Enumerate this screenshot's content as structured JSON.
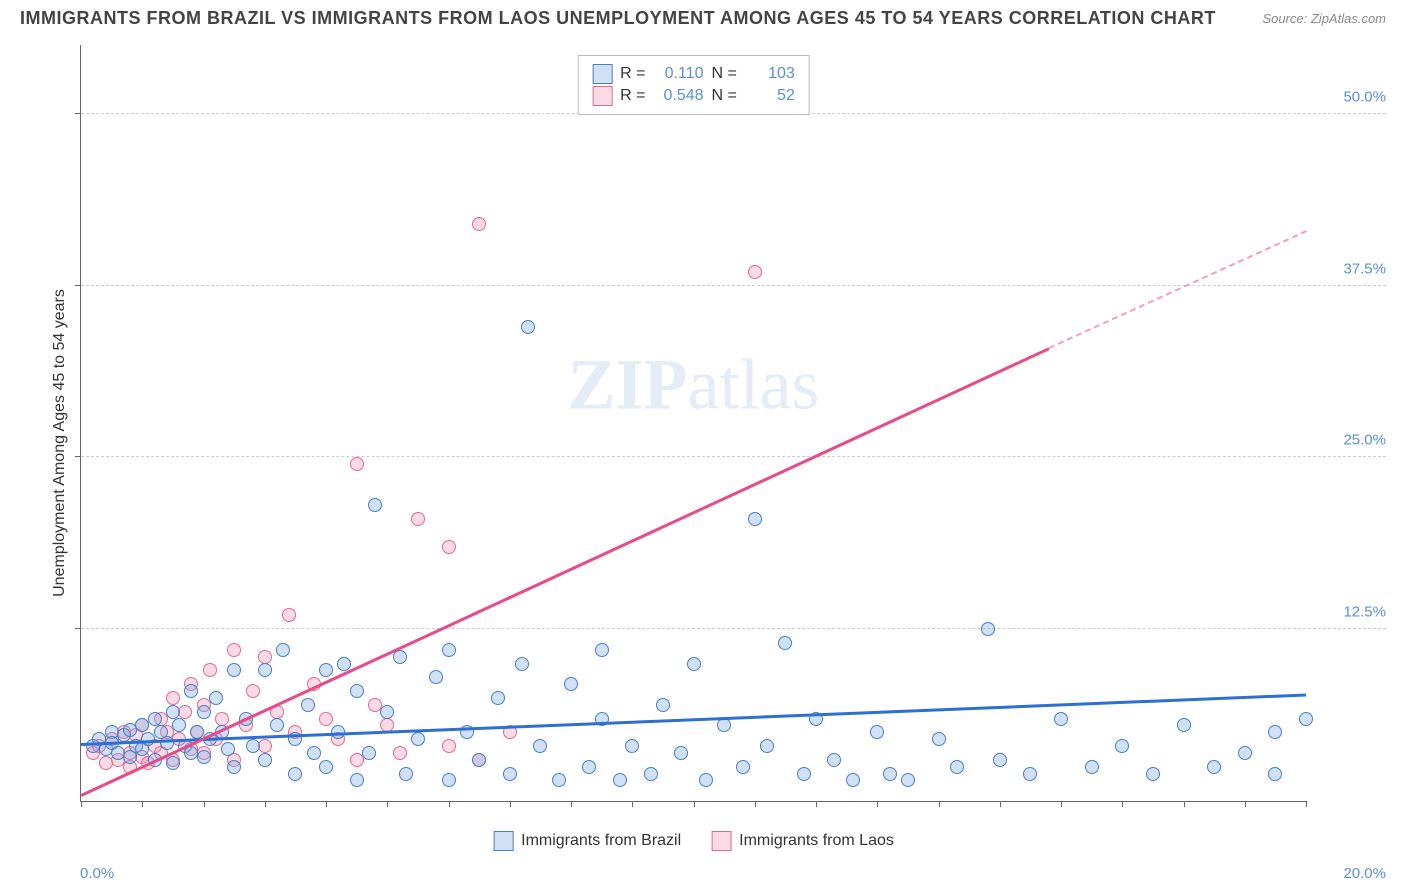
{
  "header": {
    "title": "IMMIGRANTS FROM BRAZIL VS IMMIGRANTS FROM LAOS UNEMPLOYMENT AMONG AGES 45 TO 54 YEARS CORRELATION CHART",
    "source": "Source: ZipAtlas.com"
  },
  "watermark": {
    "zip": "ZIP",
    "atlas": "atlas"
  },
  "chart": {
    "type": "scatter",
    "y_axis_label": "Unemployment Among Ages 45 to 54 years",
    "xlim": [
      0,
      20
    ],
    "ylim": [
      0,
      55
    ],
    "x_tick_step": 1,
    "y_ticks": [
      12.5,
      25.0,
      37.5,
      50.0
    ],
    "y_tick_labels": [
      "12.5%",
      "25.0%",
      "37.5%",
      "50.0%"
    ],
    "x_origin_label": "0.0%",
    "x_max_label": "20.0%",
    "background_color": "#ffffff",
    "grid_color": "#cccccc",
    "axis_color": "#666666",
    "tick_label_color": "#5b8fd9",
    "series": {
      "brazil": {
        "label": "Immigrants from Brazil",
        "fill_color": "rgba(120,170,230,0.35)",
        "stroke_color": "#4a7fc4",
        "trend_color": "#2d6fd4",
        "marker_size": 14,
        "R": "0.110",
        "N": "103",
        "trend": {
          "x1": 0,
          "y1": 4.2,
          "x2": 20,
          "y2": 7.8
        },
        "points": [
          [
            0.2,
            4.0
          ],
          [
            0.3,
            4.5
          ],
          [
            0.4,
            3.8
          ],
          [
            0.5,
            5.0
          ],
          [
            0.5,
            4.2
          ],
          [
            0.6,
            3.5
          ],
          [
            0.7,
            4.8
          ],
          [
            0.8,
            5.2
          ],
          [
            0.8,
            3.2
          ],
          [
            0.9,
            4.0
          ],
          [
            1.0,
            5.5
          ],
          [
            1.0,
            3.8
          ],
          [
            1.1,
            4.5
          ],
          [
            1.2,
            6.0
          ],
          [
            1.2,
            3.0
          ],
          [
            1.3,
            5.0
          ],
          [
            1.4,
            4.2
          ],
          [
            1.5,
            6.5
          ],
          [
            1.5,
            2.8
          ],
          [
            1.6,
            5.5
          ],
          [
            1.7,
            4.0
          ],
          [
            1.8,
            3.5
          ],
          [
            1.8,
            8.0
          ],
          [
            1.9,
            5.0
          ],
          [
            2.0,
            6.5
          ],
          [
            2.0,
            3.2
          ],
          [
            2.1,
            4.5
          ],
          [
            2.2,
            7.5
          ],
          [
            2.3,
            5.0
          ],
          [
            2.4,
            3.8
          ],
          [
            2.5,
            9.5
          ],
          [
            2.5,
            2.5
          ],
          [
            2.7,
            6.0
          ],
          [
            2.8,
            4.0
          ],
          [
            3.0,
            9.5
          ],
          [
            3.0,
            3.0
          ],
          [
            3.2,
            5.5
          ],
          [
            3.3,
            11.0
          ],
          [
            3.5,
            4.5
          ],
          [
            3.5,
            2.0
          ],
          [
            3.7,
            7.0
          ],
          [
            3.8,
            3.5
          ],
          [
            4.0,
            9.5
          ],
          [
            4.0,
            2.5
          ],
          [
            4.2,
            5.0
          ],
          [
            4.3,
            10.0
          ],
          [
            4.5,
            1.5
          ],
          [
            4.5,
            8.0
          ],
          [
            4.7,
            3.5
          ],
          [
            4.8,
            21.5
          ],
          [
            5.0,
            6.5
          ],
          [
            5.2,
            10.5
          ],
          [
            5.3,
            2.0
          ],
          [
            5.5,
            4.5
          ],
          [
            5.8,
            9.0
          ],
          [
            6.0,
            1.5
          ],
          [
            6.0,
            11.0
          ],
          [
            6.3,
            5.0
          ],
          [
            6.5,
            3.0
          ],
          [
            6.8,
            7.5
          ],
          [
            7.0,
            2.0
          ],
          [
            7.2,
            10.0
          ],
          [
            7.3,
            34.5
          ],
          [
            7.5,
            4.0
          ],
          [
            7.8,
            1.5
          ],
          [
            8.0,
            8.5
          ],
          [
            8.3,
            2.5
          ],
          [
            8.5,
            6.0
          ],
          [
            8.5,
            11.0
          ],
          [
            8.8,
            1.5
          ],
          [
            9.0,
            4.0
          ],
          [
            9.3,
            2.0
          ],
          [
            9.5,
            7.0
          ],
          [
            9.8,
            3.5
          ],
          [
            10.0,
            10.0
          ],
          [
            10.2,
            1.5
          ],
          [
            10.5,
            5.5
          ],
          [
            10.8,
            2.5
          ],
          [
            11.0,
            20.5
          ],
          [
            11.2,
            4.0
          ],
          [
            11.5,
            11.5
          ],
          [
            11.8,
            2.0
          ],
          [
            12.0,
            6.0
          ],
          [
            12.3,
            3.0
          ],
          [
            12.6,
            1.5
          ],
          [
            13.0,
            5.0
          ],
          [
            13.2,
            2.0
          ],
          [
            13.5,
            1.5
          ],
          [
            14.0,
            4.5
          ],
          [
            14.3,
            2.5
          ],
          [
            14.8,
            12.5
          ],
          [
            15.0,
            3.0
          ],
          [
            15.5,
            2.0
          ],
          [
            16.0,
            6.0
          ],
          [
            16.5,
            2.5
          ],
          [
            17.0,
            4.0
          ],
          [
            17.5,
            2.0
          ],
          [
            18.0,
            5.5
          ],
          [
            18.5,
            2.5
          ],
          [
            19.0,
            3.5
          ],
          [
            19.5,
            5.0
          ],
          [
            19.5,
            2.0
          ],
          [
            20.0,
            6.0
          ]
        ]
      },
      "laos": {
        "label": "Immigrants from Laos",
        "fill_color": "rgba(240,150,180,0.35)",
        "stroke_color": "#e06a95",
        "trend_color": "#e84b8a",
        "trend_dash_color": "#f0a0bc",
        "marker_size": 14,
        "R": "0.548",
        "N": "52",
        "trend_solid": {
          "x1": 0,
          "y1": 0.5,
          "x2": 15.8,
          "y2": 33.0
        },
        "trend_dash": {
          "x1": 15.8,
          "y1": 33.0,
          "x2": 20,
          "y2": 41.5
        },
        "points": [
          [
            0.2,
            3.5
          ],
          [
            0.3,
            4.0
          ],
          [
            0.4,
            2.8
          ],
          [
            0.5,
            4.5
          ],
          [
            0.6,
            3.0
          ],
          [
            0.7,
            5.0
          ],
          [
            0.8,
            3.5
          ],
          [
            0.8,
            2.5
          ],
          [
            0.9,
            4.8
          ],
          [
            1.0,
            3.2
          ],
          [
            1.0,
            5.5
          ],
          [
            1.1,
            2.8
          ],
          [
            1.2,
            4.0
          ],
          [
            1.3,
            6.0
          ],
          [
            1.3,
            3.5
          ],
          [
            1.4,
            5.0
          ],
          [
            1.5,
            7.5
          ],
          [
            1.5,
            3.0
          ],
          [
            1.6,
            4.5
          ],
          [
            1.7,
            6.5
          ],
          [
            1.8,
            3.8
          ],
          [
            1.8,
            8.5
          ],
          [
            1.9,
            5.0
          ],
          [
            2.0,
            7.0
          ],
          [
            2.0,
            3.5
          ],
          [
            2.1,
            9.5
          ],
          [
            2.2,
            4.5
          ],
          [
            2.3,
            6.0
          ],
          [
            2.5,
            11.0
          ],
          [
            2.5,
            3.0
          ],
          [
            2.7,
            5.5
          ],
          [
            2.8,
            8.0
          ],
          [
            3.0,
            4.0
          ],
          [
            3.0,
            10.5
          ],
          [
            3.2,
            6.5
          ],
          [
            3.4,
            13.5
          ],
          [
            3.5,
            5.0
          ],
          [
            3.8,
            8.5
          ],
          [
            4.0,
            6.0
          ],
          [
            4.2,
            4.5
          ],
          [
            4.5,
            24.5
          ],
          [
            4.5,
            3.0
          ],
          [
            4.8,
            7.0
          ],
          [
            5.0,
            5.5
          ],
          [
            5.2,
            3.5
          ],
          [
            5.5,
            20.5
          ],
          [
            6.0,
            18.5
          ],
          [
            6.0,
            4.0
          ],
          [
            6.5,
            42.0
          ],
          [
            6.5,
            3.0
          ],
          [
            7.0,
            5.0
          ],
          [
            11.0,
            38.5
          ]
        ]
      }
    }
  },
  "legend_top": {
    "r_label": "R =",
    "n_label": "N ="
  }
}
